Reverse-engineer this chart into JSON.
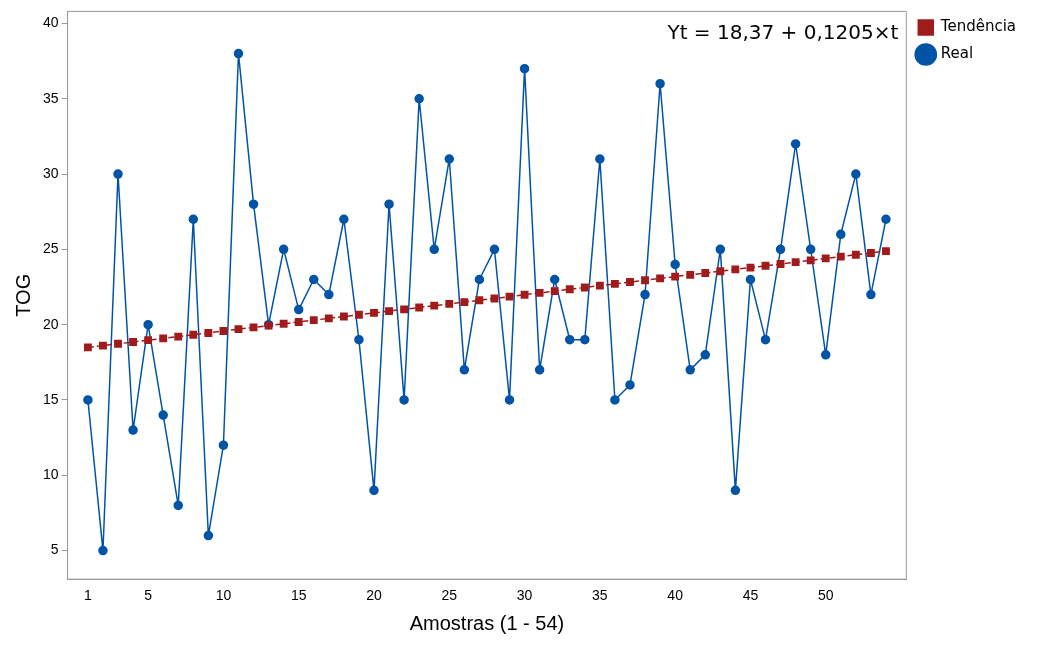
{
  "chart_data": {
    "type": "line",
    "xlabel": "Amostras (1 - 54)",
    "ylabel": "TOG",
    "x": [
      1,
      2,
      3,
      4,
      5,
      6,
      7,
      8,
      9,
      10,
      11,
      12,
      13,
      14,
      15,
      16,
      17,
      18,
      19,
      20,
      21,
      22,
      23,
      24,
      25,
      26,
      27,
      28,
      29,
      30,
      31,
      32,
      33,
      34,
      35,
      36,
      37,
      38,
      39,
      40,
      41,
      42,
      43,
      44,
      45,
      46,
      47,
      48,
      49,
      50,
      51,
      52,
      53,
      54
    ],
    "series": [
      {
        "name": "Real",
        "color": "#0054a6",
        "marker": "circle",
        "line_style": "solid",
        "values": [
          15,
          5,
          30,
          13,
          20,
          14,
          8,
          27,
          6,
          12,
          38,
          28,
          20,
          25,
          21,
          23,
          22,
          27,
          19,
          9,
          28,
          15,
          35,
          25,
          31,
          17,
          23,
          25,
          15,
          37,
          17,
          23,
          19,
          19,
          31,
          15,
          16,
          22,
          36,
          24,
          17,
          18,
          25,
          9,
          23,
          19,
          25,
          32,
          25,
          18,
          26,
          30,
          22,
          27
        ]
      },
      {
        "name": "Tendência",
        "color": "#a01c1c",
        "marker": "square",
        "line_style": "dashed",
        "values": [
          18.49,
          18.61,
          18.73,
          18.85,
          18.97,
          19.09,
          19.21,
          19.33,
          19.45,
          19.58,
          19.7,
          19.82,
          19.94,
          20.06,
          20.18,
          20.3,
          20.42,
          20.54,
          20.66,
          20.78,
          20.9,
          21.02,
          21.14,
          21.26,
          21.38,
          21.5,
          21.62,
          21.74,
          21.86,
          21.99,
          22.11,
          22.23,
          22.35,
          22.47,
          22.59,
          22.71,
          22.83,
          22.95,
          23.07,
          23.19,
          23.31,
          23.43,
          23.55,
          23.67,
          23.79,
          23.91,
          24.03,
          24.15,
          24.27,
          24.4,
          24.52,
          24.64,
          24.76,
          24.88
        ]
      }
    ],
    "xlim": [
      -0.35,
      55.35
    ],
    "xticks": [
      1,
      5,
      10,
      15,
      20,
      25,
      30,
      35,
      40,
      45,
      50
    ],
    "ylim": [
      3.1,
      40.8
    ],
    "yticks": [
      5,
      10,
      15,
      20,
      25,
      30,
      35,
      40
    ],
    "annotations": [
      "Yt = 18,37 + 0,1205×t"
    ],
    "legend": "top right"
  }
}
